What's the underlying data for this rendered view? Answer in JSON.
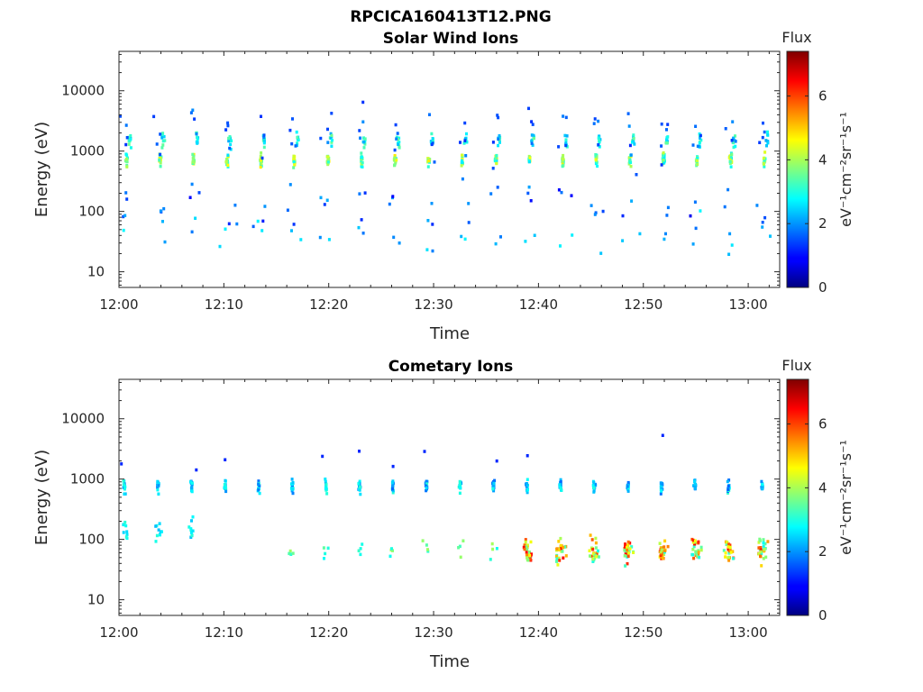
{
  "figure_title": "RPCICA160413T12.PNG",
  "chart_data": [
    {
      "type": "heatmap",
      "title": "Solar Wind Ions",
      "xlabel": "Time",
      "ylabel": "Energy (eV)",
      "xlim": [
        "12:00",
        "13:03"
      ],
      "x_ticks": [
        "12:00",
        "12:10",
        "12:20",
        "12:30",
        "12:40",
        "12:50",
        "13:00"
      ],
      "y_scale": "log",
      "ylim": [
        5.5,
        45000
      ],
      "y_ticks": [
        "10",
        "100",
        "1000",
        "10000"
      ],
      "colorbar": {
        "title": "Flux",
        "label": "eV⁻¹cm⁻²sr⁻¹s⁻¹",
        "range": [
          0,
          7.4
        ],
        "ticks": [
          "0",
          "2",
          "4",
          "6"
        ],
        "colormap": "jet"
      },
      "features": {
        "scan_period_min": 3.2,
        "first_scan_min": 0.6,
        "core_energy_eV": 700,
        "core_flux": 4.6,
        "secondary_energy_eV": 1500,
        "secondary_flux": 3.6,
        "low_energy_flux": 2.5
      }
    },
    {
      "type": "heatmap",
      "title": "Cometary Ions",
      "xlabel": "Time",
      "ylabel": "Energy (eV)",
      "xlim": [
        "12:00",
        "13:03"
      ],
      "x_ticks": [
        "12:00",
        "12:10",
        "12:20",
        "12:30",
        "12:40",
        "12:50",
        "13:00"
      ],
      "y_scale": "log",
      "ylim": [
        5.5,
        45000
      ],
      "y_ticks": [
        "10",
        "100",
        "1000",
        "10000"
      ],
      "colorbar": {
        "title": "Flux",
        "label": "eV⁻¹cm⁻²sr⁻¹s⁻¹",
        "range": [
          0,
          7.4
        ],
        "ticks": [
          "0",
          "2",
          "4",
          "6"
        ],
        "colormap": "jet"
      },
      "features": {
        "scan_period_min": 3.2,
        "core_energy_eV": 750,
        "core_flux": 3.0,
        "cometary_energy_eV": 65,
        "cometary_flux_peak": 6.5,
        "cometary_active_from_min": 36,
        "early_population_energy_eV": 150
      }
    }
  ]
}
